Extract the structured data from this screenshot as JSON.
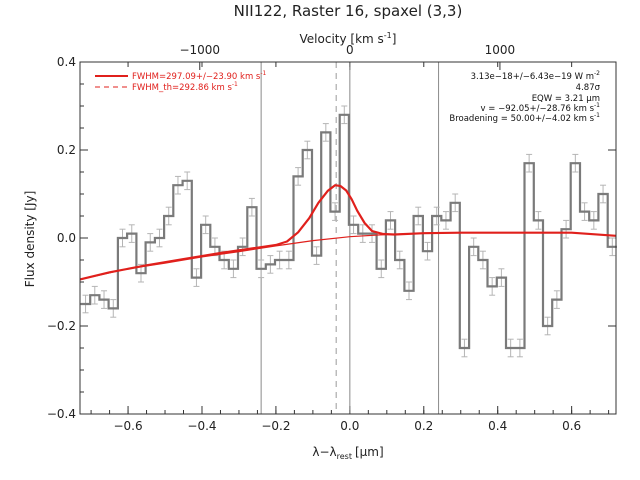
{
  "chart_data": {
    "type": "line",
    "title": "NII122, Raster 16, spaxel (3,3)",
    "xlabel": "λ−λ",
    "xlabel_sub": "rest",
    "xlabel_unit": "[μm]",
    "ylabel": "Flux density [Jy]",
    "top_axis_label": "Velocity [km s",
    "top_axis_exp": "-1",
    "top_axis_close": "]",
    "xlim": [
      -0.73,
      0.72
    ],
    "ylim": [
      -0.4,
      0.4
    ],
    "x_ticks": [
      -0.6,
      -0.4,
      -0.2,
      0.0,
      0.2,
      0.4,
      0.6
    ],
    "x_tick_labels": [
      "−0.6",
      "−0.4",
      "−0.2",
      "0.0",
      "0.2",
      "0.4",
      "0.6"
    ],
    "y_ticks": [
      -0.4,
      -0.2,
      0.0,
      0.2,
      0.4
    ],
    "y_tick_labels": [
      "−0.4",
      "−0.2",
      "0.0",
      "0.2",
      "0.4"
    ],
    "top_ticks": [
      -1000,
      0,
      1000
    ],
    "top_tick_labels": [
      "−1000",
      "0",
      "1000"
    ],
    "top_axis_scale": 0.000406,
    "vertical_lines_solid": [
      -0.24,
      0.0,
      0.24
    ],
    "vertical_line_dashed": -0.037,
    "legend": [
      {
        "text": "FWHM=297.09+/−23.90 km s",
        "exp": "-1",
        "style": "solid"
      },
      {
        "text": "FWHM_th=292.86 km s",
        "exp": "-1",
        "style": "dashed"
      }
    ],
    "annotations": [
      {
        "text": "3.13e−18+/−6.43e−19 W m",
        "exp": "-2"
      },
      {
        "text": "4.87σ",
        "exp": ""
      },
      {
        "text": "EQW = 3.21 μm",
        "exp": ""
      },
      {
        "text": "v = −92.05+/−28.76 km s",
        "exp": "-1"
      },
      {
        "text": "Broadening = 50.00+/−4.02 km s",
        "exp": "-1"
      }
    ],
    "series": [
      {
        "style": "steps",
        "x": [
          -0.715,
          -0.69,
          -0.665,
          -0.64,
          -0.615,
          -0.59,
          -0.565,
          -0.54,
          -0.515,
          -0.49,
          -0.465,
          -0.44,
          -0.415,
          -0.39,
          -0.365,
          -0.34,
          -0.315,
          -0.29,
          -0.265,
          -0.24,
          -0.215,
          -0.19,
          -0.165,
          -0.14,
          -0.115,
          -0.09,
          -0.065,
          -0.04,
          -0.015,
          0.01,
          0.035,
          0.06,
          0.085,
          0.11,
          0.135,
          0.16,
          0.185,
          0.21,
          0.235,
          0.26,
          0.285,
          0.31,
          0.335,
          0.36,
          0.385,
          0.41,
          0.435,
          0.46,
          0.485,
          0.51,
          0.535,
          0.56,
          0.585,
          0.61,
          0.635,
          0.66,
          0.685,
          0.71
        ],
        "y": [
          -0.15,
          -0.13,
          -0.14,
          -0.16,
          0.0,
          0.01,
          -0.08,
          -0.01,
          0.0,
          0.05,
          0.12,
          0.13,
          -0.09,
          0.03,
          -0.02,
          -0.05,
          -0.07,
          -0.02,
          0.07,
          -0.07,
          -0.06,
          -0.05,
          -0.05,
          0.14,
          0.2,
          -0.04,
          0.24,
          0.06,
          0.28,
          0.03,
          0.01,
          0.01,
          -0.07,
          0.04,
          -0.05,
          -0.12,
          0.05,
          -0.03,
          0.05,
          0.04,
          0.08,
          -0.25,
          -0.02,
          -0.05,
          -0.11,
          -0.09,
          -0.25,
          -0.25,
          0.17,
          0.04,
          -0.2,
          -0.14,
          0.02,
          0.17,
          0.06,
          0.04,
          0.1,
          -0.02
        ],
        "err": 0.02
      },
      {
        "style": "line",
        "x": [
          -0.73,
          -0.65,
          -0.55,
          -0.45,
          -0.35,
          -0.25,
          -0.2,
          -0.17,
          -0.14,
          -0.11,
          -0.085,
          -0.06,
          -0.04,
          -0.025,
          -0.01,
          0.005,
          0.02,
          0.04,
          0.06,
          0.09,
          0.12,
          0.2,
          0.3,
          0.4,
          0.5,
          0.6,
          0.72
        ],
        "y": [
          -0.094,
          -0.078,
          -0.062,
          -0.048,
          -0.034,
          -0.022,
          -0.016,
          -0.008,
          0.013,
          0.045,
          0.08,
          0.107,
          0.12,
          0.118,
          0.108,
          0.088,
          0.062,
          0.034,
          0.016,
          0.009,
          0.008,
          0.011,
          0.012,
          0.012,
          0.012,
          0.012,
          0.005
        ]
      },
      {
        "style": "line",
        "x": [
          -0.73,
          -0.6,
          -0.5,
          -0.4,
          -0.3,
          -0.2,
          -0.1,
          0.0,
          0.1,
          0.2,
          0.3,
          0.4,
          0.5,
          0.6,
          0.72
        ],
        "y": [
          -0.094,
          -0.07,
          -0.057,
          -0.043,
          -0.031,
          -0.018,
          -0.006,
          0.003,
          0.008,
          0.011,
          0.012,
          0.012,
          0.012,
          0.012,
          0.005
        ]
      }
    ]
  }
}
